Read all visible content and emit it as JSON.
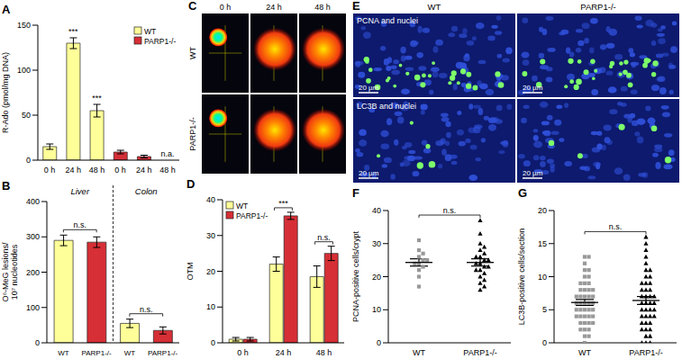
{
  "chart_data": [
    {
      "panel": "A",
      "type": "bar",
      "categories": [
        "0 h",
        "24 h",
        "48 h",
        "0 h",
        "24 h",
        "48 h"
      ],
      "ylabel": "R-Ado (pmol/mg DNA)",
      "ylim": [
        0,
        150
      ],
      "yticks": [
        0,
        50,
        100,
        150
      ],
      "legend": "top-right",
      "series": [
        {
          "name": "WT",
          "color": "#ffff99",
          "values": [
            15,
            130,
            55,
            null,
            null,
            null
          ],
          "errors": [
            3,
            6,
            7,
            null,
            null,
            null
          ]
        },
        {
          "name": "PARP1-/-",
          "color": "#d62f36",
          "values": [
            null,
            null,
            null,
            9,
            4,
            null
          ],
          "errors": [
            null,
            null,
            null,
            2,
            1.5,
            null
          ]
        }
      ],
      "annotations": [
        {
          "text": "***",
          "category": 1
        },
        {
          "text": "***",
          "category": 2
        },
        {
          "text": "n.a.",
          "category": 5
        }
      ]
    },
    {
      "panel": "B",
      "type": "bar",
      "categories": [
        "WT",
        "PARP1-/-",
        "WT",
        "PARP1-/-"
      ],
      "values": [
        290,
        285,
        55,
        35
      ],
      "errors": [
        15,
        15,
        12,
        10
      ],
      "colors": [
        "#ffff99",
        "#d62f36",
        "#ffff99",
        "#d62f36"
      ],
      "ylabel": [
        "O⁶-MeG lesions/",
        "10⁷ nucleotides"
      ],
      "ylim": [
        0,
        400
      ],
      "yticks": [
        0,
        100,
        200,
        300,
        400
      ],
      "groups": [
        {
          "label": "Liver",
          "from": 0,
          "to": 1
        },
        {
          "label": "Colon",
          "from": 2,
          "to": 3
        }
      ],
      "annotations": [
        {
          "text": "n.s.",
          "from": 0,
          "to": 1
        },
        {
          "text": "n.s.",
          "from": 2,
          "to": 3
        }
      ]
    },
    {
      "panel": "C",
      "type": "image",
      "columns": [
        "0 h",
        "24 h",
        "48 h"
      ],
      "rows": [
        "WT",
        "PARP1-/-"
      ]
    },
    {
      "panel": "D",
      "type": "bar",
      "categories": [
        "0 h",
        "24 h",
        "48 h"
      ],
      "ylabel": "OTM",
      "ylim": [
        0,
        40
      ],
      "yticks": [
        0,
        10,
        20,
        30,
        40
      ],
      "legend": "top-left",
      "series": [
        {
          "name": "WT",
          "color": "#ffff99",
          "values": [
            1,
            22,
            18.5
          ],
          "errors": [
            0.5,
            2,
            3
          ]
        },
        {
          "name": "PARP1-/-",
          "color": "#d62f36",
          "values": [
            1,
            35.5,
            25
          ],
          "errors": [
            0.5,
            1,
            2
          ]
        }
      ],
      "annotations": [
        {
          "text": "***",
          "category": 1
        },
        {
          "text": "n.s.",
          "category": 2
        }
      ]
    },
    {
      "panel": "E",
      "type": "image",
      "columns": [
        "WT",
        "PARP1-/-"
      ],
      "rows": [
        "PCNA and nuclei",
        "LC3B and nuclei"
      ],
      "scale_bar": "20 µm"
    },
    {
      "panel": "F",
      "type": "scatter",
      "ylabel": "PCNA-positive cells/crypt",
      "xlim": [
        -0.5,
        1.5
      ],
      "xticks": [
        {
          "value": 0,
          "label": "WT"
        },
        {
          "value": 1,
          "label": "PARP1-/-"
        }
      ],
      "ylim": [
        0,
        40
      ],
      "yticks": [
        0,
        10,
        20,
        30,
        40
      ],
      "series": [
        {
          "x": 0,
          "color": "#999999",
          "marker": "square",
          "values": [
            31,
            28,
            27,
            26,
            25,
            25,
            24,
            24,
            23,
            22,
            20,
            17
          ],
          "mean": 24.3,
          "sem": 1.1
        },
        {
          "x": 1,
          "color": "#000000",
          "marker": "triangle",
          "values": [
            37,
            33,
            30,
            29,
            28,
            27,
            26,
            26,
            25,
            25,
            24,
            24,
            23,
            23,
            22,
            22,
            21,
            20,
            19,
            18,
            17,
            16
          ],
          "mean": 24.3,
          "sem": 1.1
        }
      ],
      "annotations": [
        {
          "text": "n.s.",
          "from": 0,
          "to": 1
        }
      ]
    },
    {
      "panel": "G",
      "type": "scatter",
      "ylabel": "LC3B-positive cells/section",
      "xlim": [
        -0.5,
        1.5
      ],
      "xticks": [
        {
          "value": 0,
          "label": "WT"
        },
        {
          "value": 1,
          "label": "PARP1-/-"
        }
      ],
      "ylim": [
        0,
        20
      ],
      "yticks": [
        0,
        5,
        10,
        15,
        20
      ],
      "series": [
        {
          "x": 0,
          "color": "#999999",
          "marker": "square",
          "values": [
            0,
            1,
            1,
            2,
            2,
            2,
            3,
            3,
            3,
            3,
            4,
            4,
            4,
            4,
            4,
            5,
            5,
            5,
            5,
            5,
            6,
            6,
            6,
            6,
            6,
            7,
            7,
            7,
            7,
            7,
            8,
            8,
            8,
            8,
            9,
            9,
            9,
            10,
            10,
            11,
            11,
            12,
            13,
            13
          ],
          "mean": 6.1,
          "sem": 0.45
        },
        {
          "x": 1,
          "color": "#000000",
          "marker": "triangle",
          "values": [
            0,
            0,
            0,
            1,
            1,
            2,
            2,
            2,
            3,
            3,
            3,
            4,
            4,
            4,
            4,
            5,
            5,
            5,
            5,
            6,
            6,
            6,
            6,
            7,
            7,
            7,
            7,
            8,
            8,
            8,
            9,
            9,
            9,
            10,
            10,
            11,
            11,
            12,
            13,
            14,
            15,
            16
          ],
          "mean": 6.4,
          "sem": 0.6
        }
      ],
      "annotations": [
        {
          "text": "n.s.",
          "from": 0,
          "to": 1
        }
      ]
    }
  ]
}
